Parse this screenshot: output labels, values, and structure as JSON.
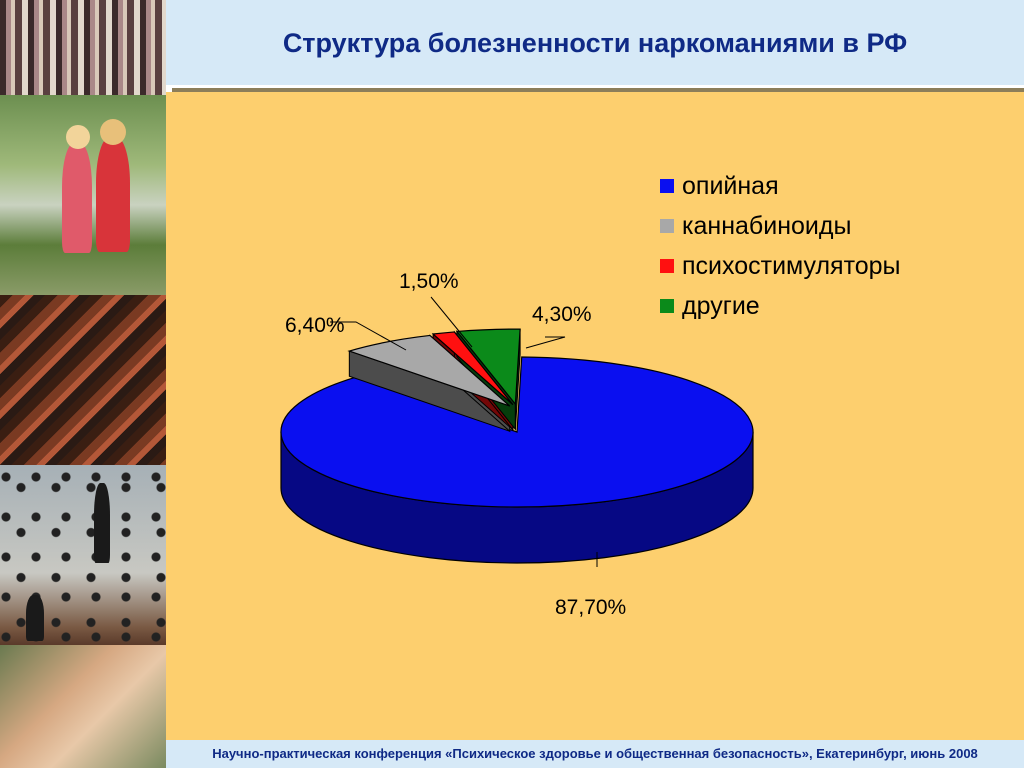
{
  "header": {
    "title": "Структура болезненности наркоманиями в РФ"
  },
  "footer": {
    "text": "Научно-практическая конференция «Психическое здоровье и общественная безопасность», Екатеринбург, июнь 2008"
  },
  "side_photos": [
    "crowd-photo",
    "children-bicycle-photo",
    "factory-painting-photo",
    "raining-men-painting-photo",
    "joined-hands-photo"
  ],
  "chart_data": {
    "type": "pie",
    "three_d": true,
    "title": "Структура болезненности наркоманиями в РФ",
    "legend_position": "right",
    "slices": [
      {
        "name": "опийная",
        "value": 87.7,
        "label": "87,70%",
        "color": "#0a0ff0"
      },
      {
        "name": "каннабиноиды",
        "value": 6.4,
        "label": "6,40%",
        "color": "#a8a8a8"
      },
      {
        "name": "психостимуляторы",
        "value": 1.5,
        "label": "1,50%",
        "color": "#ff1010"
      },
      {
        "name": "другие",
        "value": 4.3,
        "label": "4,30%",
        "color": "#0b8a1a"
      }
    ]
  }
}
